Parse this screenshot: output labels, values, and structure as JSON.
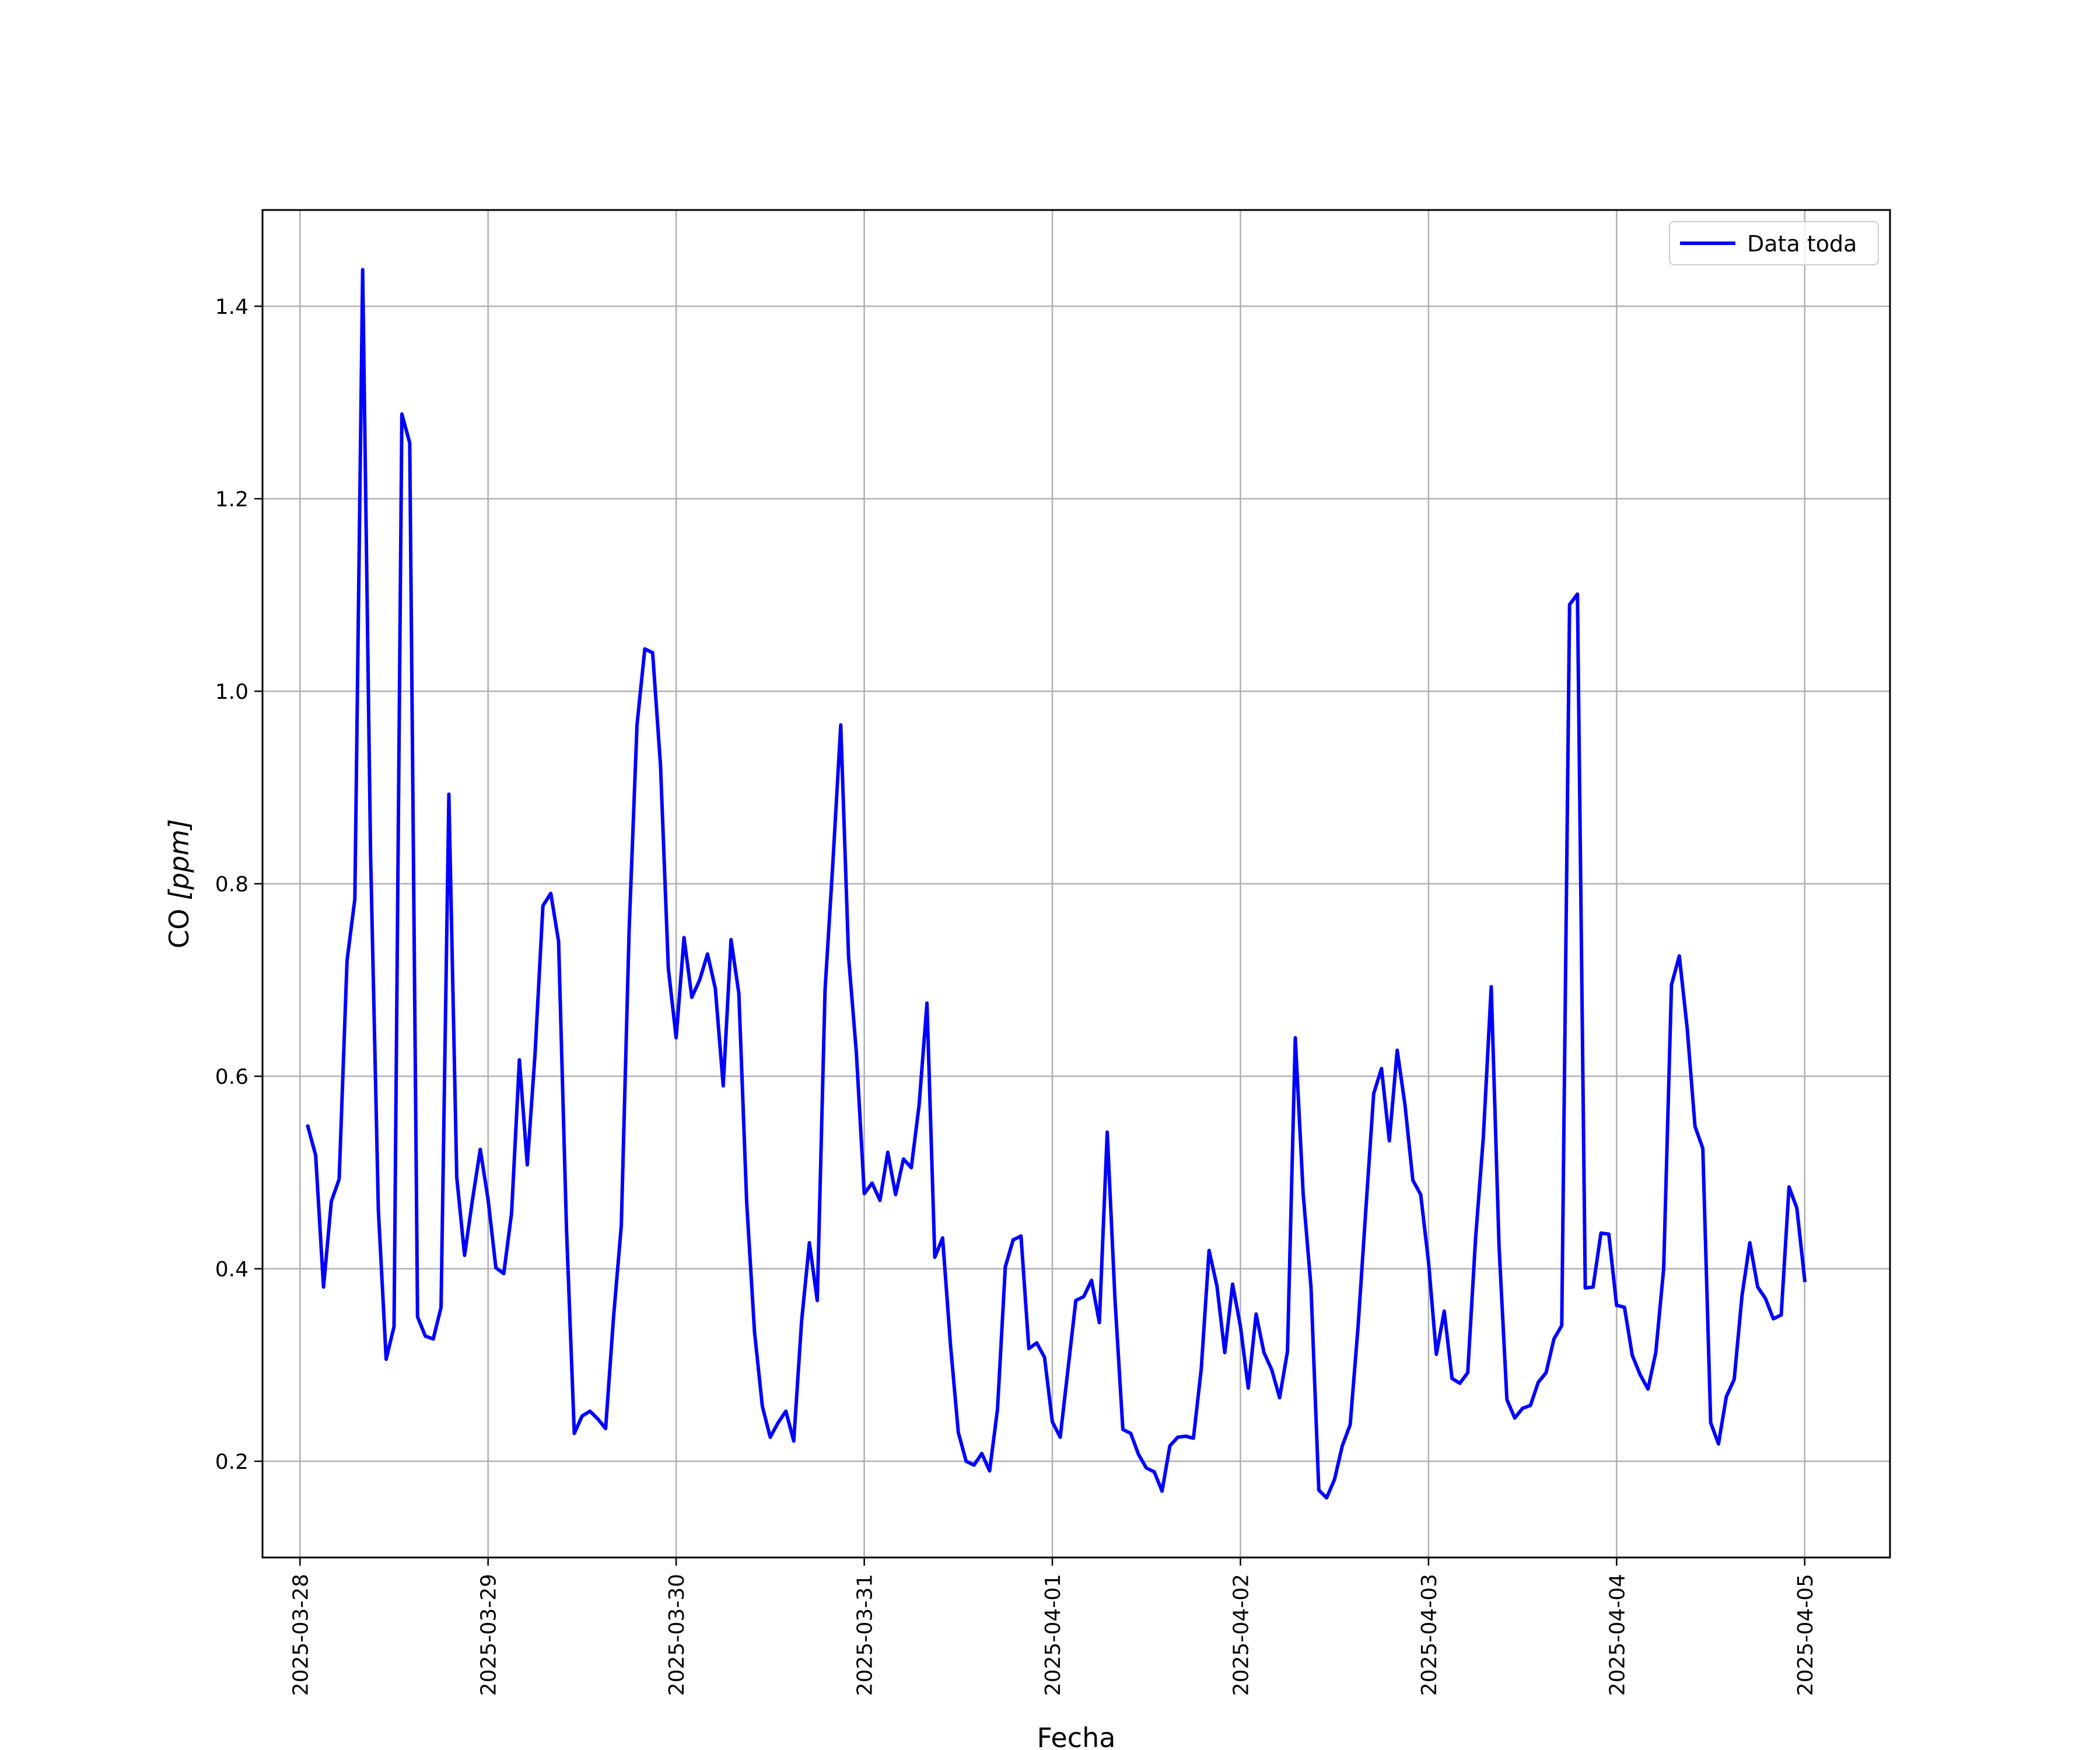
{
  "chart_data": {
    "type": "line",
    "xlabel": "Fecha",
    "ylabel_main": "CO ",
    "ylabel_unit": "[ppm]",
    "ylim": [
      0.1,
      1.5
    ],
    "yticks": [
      0.2,
      0.4,
      0.6,
      0.8,
      1.0,
      1.2,
      1.4
    ],
    "ytick_labels": [
      "0.2",
      "0.4",
      "0.6",
      "0.8",
      "1.0",
      "1.2",
      "1.4"
    ],
    "xlim": [
      "2025-03-27T19:13",
      "2025-04-05T10:53"
    ],
    "xticks": [
      "2025-03-28",
      "2025-03-29",
      "2025-03-30",
      "2025-03-31",
      "2025-04-01",
      "2025-04-02",
      "2025-04-03",
      "2025-04-04",
      "2025-04-05"
    ],
    "grid": true,
    "legend_position": "top-right",
    "series": [
      {
        "name": "Data toda",
        "color": "#0000ff",
        "x_start": "2025-03-28T01:00",
        "x_step_hours": 1,
        "values": [
          0.548,
          0.518,
          0.381,
          0.47,
          0.493,
          0.72,
          0.784,
          1.438,
          0.833,
          0.461,
          0.306,
          0.34,
          1.288,
          1.258,
          0.35,
          0.33,
          0.327,
          0.36,
          0.893,
          0.495,
          0.414,
          0.471,
          0.524,
          0.472,
          0.401,
          0.395,
          0.458,
          0.617,
          0.508,
          0.624,
          0.777,
          0.79,
          0.74,
          0.442,
          0.229,
          0.247,
          0.252,
          0.244,
          0.234,
          0.349,
          0.445,
          0.752,
          0.965,
          1.044,
          1.04,
          0.923,
          0.712,
          0.64,
          0.744,
          0.682,
          0.7,
          0.727,
          0.691,
          0.59,
          0.742,
          0.686,
          0.468,
          0.334,
          0.257,
          0.225,
          0.24,
          0.252,
          0.221,
          0.345,
          0.427,
          0.367,
          0.69,
          0.822,
          0.965,
          0.724,
          0.624,
          0.478,
          0.489,
          0.471,
          0.521,
          0.477,
          0.514,
          0.505,
          0.57,
          0.676,
          0.412,
          0.432,
          0.321,
          0.23,
          0.2,
          0.196,
          0.208,
          0.19,
          0.254,
          0.402,
          0.43,
          0.434,
          0.317,
          0.323,
          0.308,
          0.241,
          0.225,
          0.296,
          0.367,
          0.371,
          0.388,
          0.344,
          0.542,
          0.367,
          0.233,
          0.229,
          0.207,
          0.193,
          0.189,
          0.169,
          0.216,
          0.225,
          0.226,
          0.224,
          0.296,
          0.419,
          0.382,
          0.313,
          0.384,
          0.34,
          0.276,
          0.353,
          0.313,
          0.295,
          0.266,
          0.314,
          0.64,
          0.479,
          0.381,
          0.17,
          0.162,
          0.181,
          0.216,
          0.238,
          0.339,
          0.461,
          0.582,
          0.608,
          0.533,
          0.627,
          0.57,
          0.492,
          0.477,
          0.407,
          0.311,
          0.356,
          0.286,
          0.281,
          0.292,
          0.431,
          0.537,
          0.693,
          0.423,
          0.264,
          0.245,
          0.255,
          0.258,
          0.282,
          0.292,
          0.327,
          0.341,
          1.09,
          1.101,
          0.38,
          0.381,
          0.437,
          0.436,
          0.362,
          0.36,
          0.31,
          0.29,
          0.275,
          0.313,
          0.4,
          0.695,
          0.725,
          0.65,
          0.548,
          0.525,
          0.24,
          0.218,
          0.267,
          0.285,
          0.372,
          0.427,
          0.381,
          0.369,
          0.348,
          0.352,
          0.485,
          0.463,
          0.388
        ]
      }
    ]
  }
}
